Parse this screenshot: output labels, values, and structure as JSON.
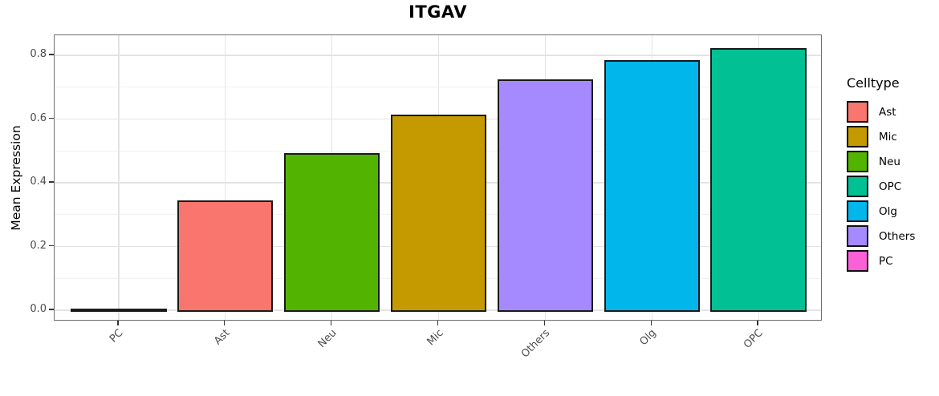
{
  "title": "ITGAV",
  "y_axis": {
    "label": "Mean Expression",
    "tick_labels": [
      "0.0",
      "0.2",
      "0.4",
      "0.6",
      "0.8"
    ]
  },
  "legend": {
    "title": "Celltype",
    "entries": [
      {
        "label": "Ast",
        "color": "#F8766D"
      },
      {
        "label": "Mic",
        "color": "#C49A00"
      },
      {
        "label": "Neu",
        "color": "#53B400"
      },
      {
        "label": "OPC",
        "color": "#00C094"
      },
      {
        "label": "Olg",
        "color": "#00B6EB"
      },
      {
        "label": "Others",
        "color": "#A58AFF"
      },
      {
        "label": "PC",
        "color": "#FB61D7"
      }
    ]
  },
  "chart_data": {
    "type": "bar",
    "title": "ITGAV",
    "xlabel": "",
    "ylabel": "Mean Expression",
    "categories": [
      "PC",
      "Ast",
      "Neu",
      "Mic",
      "Others",
      "Olg",
      "OPC"
    ],
    "values": [
      0.001,
      0.34,
      0.49,
      0.61,
      0.72,
      0.78,
      0.82
    ],
    "bar_colors": [
      "#FB61D7",
      "#F8766D",
      "#53B400",
      "#C49A00",
      "#A58AFF",
      "#00B6EB",
      "#00C094"
    ],
    "bar_outline_color": "#1a1a1a",
    "y_ticks": [
      0.0,
      0.2,
      0.4,
      0.6,
      0.8
    ],
    "y_minor_ticks": [
      0.1,
      0.3,
      0.5,
      0.7
    ],
    "ylim": [
      -0.043,
      0.863
    ],
    "grid": true,
    "x_label_angle": 45,
    "legend_position": "right",
    "legend_title": "Celltype"
  }
}
